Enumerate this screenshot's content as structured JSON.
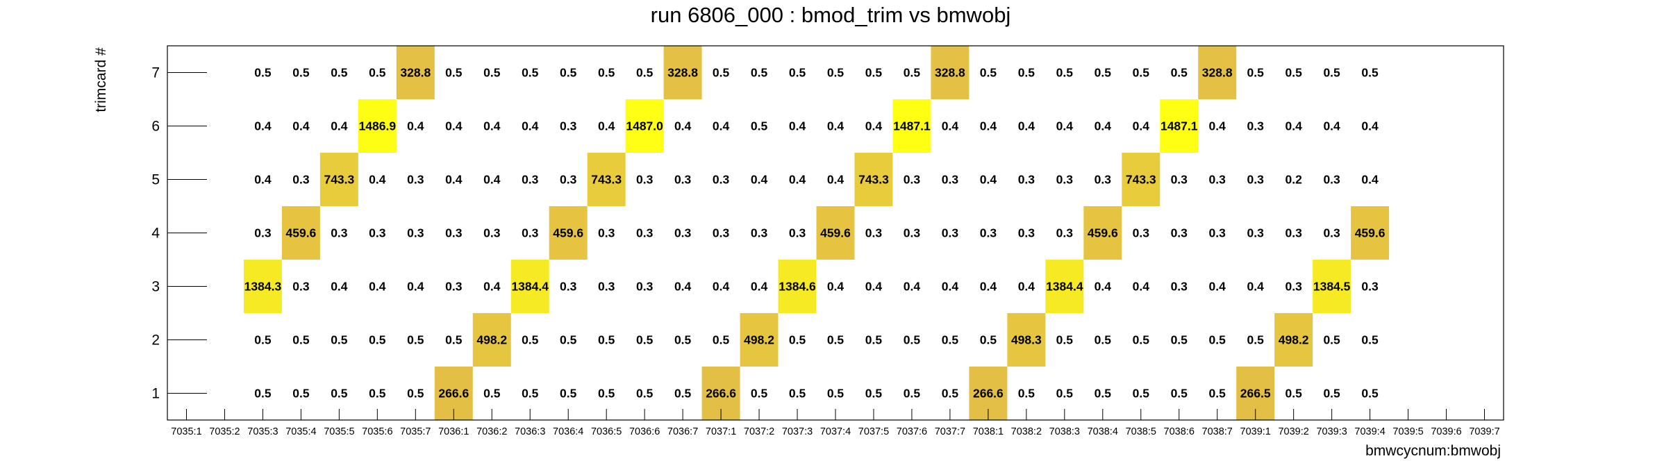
{
  "chart_data": {
    "type": "heatmap",
    "title": "run 6806_000 : bmod_trim vs bmwobj",
    "xlabel": "bmwcycnum:bmwobj",
    "ylabel": "trimcard #",
    "x_categories": [
      "7035:1",
      "7035:2",
      "7035:3",
      "7035:4",
      "7035:5",
      "7035:6",
      "7035:7",
      "7036:1",
      "7036:2",
      "7036:3",
      "7036:4",
      "7036:5",
      "7036:6",
      "7036:7",
      "7037:1",
      "7037:2",
      "7037:3",
      "7037:4",
      "7037:5",
      "7037:6",
      "7037:7",
      "7038:1",
      "7038:2",
      "7038:3",
      "7038:4",
      "7038:5",
      "7038:6",
      "7038:7",
      "7039:1",
      "7039:2",
      "7039:3",
      "7039:4",
      "7039:5",
      "7039:6",
      "7039:7"
    ],
    "y_categories": [
      "1",
      "2",
      "3",
      "4",
      "5",
      "6",
      "7"
    ],
    "color_scale": {
      "min": 0,
      "max": 1487.1,
      "low_color": "#ffff14",
      "high_color": "#e1b94a"
    },
    "rows": [
      {
        "y": "7",
        "x_start": 2,
        "values": [
          "0.5",
          "0.5",
          "0.5",
          "0.5",
          "328.8",
          "0.5",
          "0.5",
          "0.5",
          "0.5",
          "0.5",
          "0.5",
          "328.8",
          "0.5",
          "0.5",
          "0.5",
          "0.5",
          "0.5",
          "0.5",
          "328.8",
          "0.5",
          "0.5",
          "0.5",
          "0.5",
          "0.5",
          "0.5",
          "328.8",
          "0.5",
          "0.5",
          "0.5",
          "0.5"
        ]
      },
      {
        "y": "6",
        "x_start": 2,
        "values": [
          "0.4",
          "0.4",
          "0.4",
          "1486.9",
          "0.4",
          "0.4",
          "0.4",
          "0.4",
          "0.3",
          "0.4",
          "1487.0",
          "0.4",
          "0.4",
          "0.5",
          "0.4",
          "0.4",
          "0.4",
          "1487.1",
          "0.4",
          "0.4",
          "0.4",
          "0.4",
          "0.4",
          "0.4",
          "1487.1",
          "0.4",
          "0.3",
          "0.4",
          "0.4",
          "0.4"
        ]
      },
      {
        "y": "5",
        "x_start": 2,
        "values": [
          "0.4",
          "0.3",
          "743.3",
          "0.4",
          "0.3",
          "0.4",
          "0.4",
          "0.3",
          "0.3",
          "743.3",
          "0.3",
          "0.3",
          "0.3",
          "0.4",
          "0.4",
          "0.4",
          "743.3",
          "0.3",
          "0.3",
          "0.4",
          "0.3",
          "0.3",
          "0.3",
          "743.3",
          "0.3",
          "0.3",
          "0.3",
          "0.2",
          "0.3",
          "0.4"
        ]
      },
      {
        "y": "4",
        "x_start": 2,
        "values": [
          "0.3",
          "459.6",
          "0.3",
          "0.3",
          "0.3",
          "0.3",
          "0.3",
          "0.3",
          "459.6",
          "0.3",
          "0.3",
          "0.3",
          "0.3",
          "0.3",
          "0.3",
          "459.6",
          "0.3",
          "0.3",
          "0.3",
          "0.3",
          "0.3",
          "0.3",
          "459.6",
          "0.3",
          "0.3",
          "0.3",
          "0.3",
          "0.3",
          "0.3",
          "459.6"
        ]
      },
      {
        "y": "3",
        "x_start": 2,
        "values": [
          "1384.3",
          "0.3",
          "0.4",
          "0.4",
          "0.4",
          "0.3",
          "0.4",
          "1384.4",
          "0.3",
          "0.3",
          "0.3",
          "0.4",
          "0.4",
          "0.4",
          "1384.6",
          "0.4",
          "0.4",
          "0.4",
          "0.4",
          "0.4",
          "0.4",
          "1384.4",
          "0.4",
          "0.4",
          "0.3",
          "0.4",
          "0.4",
          "0.3",
          "1384.5",
          "0.3"
        ]
      },
      {
        "y": "2",
        "x_start": 2,
        "values": [
          "0.5",
          "0.5",
          "0.5",
          "0.5",
          "0.5",
          "0.5",
          "498.2",
          "0.5",
          "0.5",
          "0.5",
          "0.5",
          "0.5",
          "0.5",
          "498.2",
          "0.5",
          "0.5",
          "0.5",
          "0.5",
          "0.5",
          "0.5",
          "498.3",
          "0.5",
          "0.5",
          "0.5",
          "0.5",
          "0.5",
          "0.5",
          "498.2",
          "0.5",
          "0.5"
        ]
      },
      {
        "y": "1",
        "x_start": 2,
        "values": [
          "0.5",
          "0.5",
          "0.5",
          "0.5",
          "0.5",
          "266.6",
          "0.5",
          "0.5",
          "0.5",
          "0.5",
          "0.5",
          "0.5",
          "266.6",
          "0.5",
          "0.5",
          "0.5",
          "0.5",
          "0.5",
          "0.5",
          "266.6",
          "0.5",
          "0.5",
          "0.5",
          "0.5",
          "0.5",
          "0.5",
          "266.5",
          "0.5",
          "0.5",
          "0.5"
        ]
      }
    ],
    "grid": false,
    "legend": "none"
  }
}
